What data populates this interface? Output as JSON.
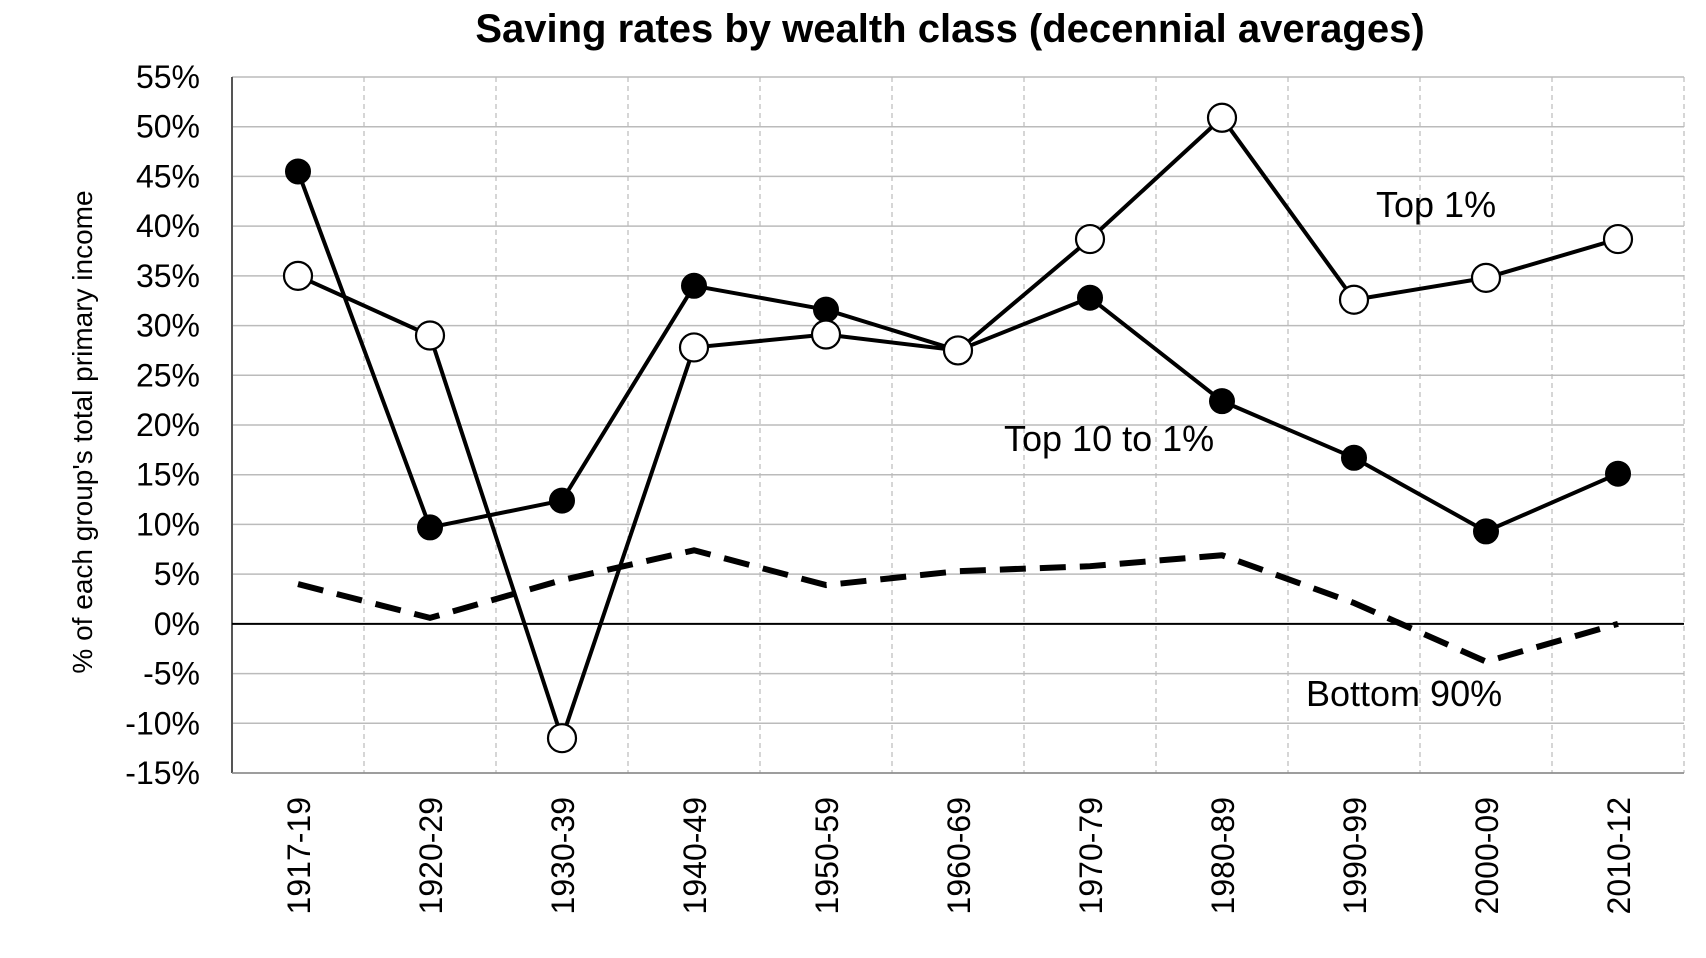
{
  "chart_data": {
    "type": "line",
    "title": "Saving rates by wealth class (decennial averages)",
    "xlabel": "",
    "ylabel": "% of each group's total primary income",
    "categories": [
      "1917-19",
      "1920-29",
      "1930-39",
      "1940-49",
      "1950-59",
      "1960-69",
      "1970-79",
      "1980-89",
      "1990-99",
      "2000-09",
      "2010-12"
    ],
    "y_ticks": [
      "55%",
      "50%",
      "45%",
      "40%",
      "35%",
      "30%",
      "25%",
      "20%",
      "15%",
      "10%",
      "5%",
      "0%",
      "-5%",
      "-10%",
      "-15%"
    ],
    "ylim": [
      -15,
      55
    ],
    "y_unit": "%",
    "grid": true,
    "series": [
      {
        "name": "Top 1%",
        "values": [
          35,
          29,
          -11.5,
          27.8,
          29.1,
          27.5,
          38.7,
          50.9,
          32.6,
          34.8,
          38.7
        ],
        "line_style": "solid",
        "marker": "open-circle"
      },
      {
        "name": "Top 10 to 1%",
        "values": [
          45.5,
          9.7,
          12.4,
          34,
          31.6,
          27.5,
          32.8,
          22.4,
          16.7,
          9.3,
          15.1
        ],
        "line_style": "solid",
        "marker": "filled-circle"
      },
      {
        "name": "Bottom 90%",
        "values": [
          4,
          0.6,
          4.4,
          7.4,
          3.9,
          5.3,
          5.8,
          6.9,
          2.1,
          -3.8,
          0
        ],
        "line_style": "dashed",
        "marker": "none"
      }
    ],
    "colors": {
      "line": "#000000",
      "grid": "#bbbbbb",
      "open_marker_fill": "#ffffff",
      "filled_marker_fill": "#000000"
    }
  }
}
